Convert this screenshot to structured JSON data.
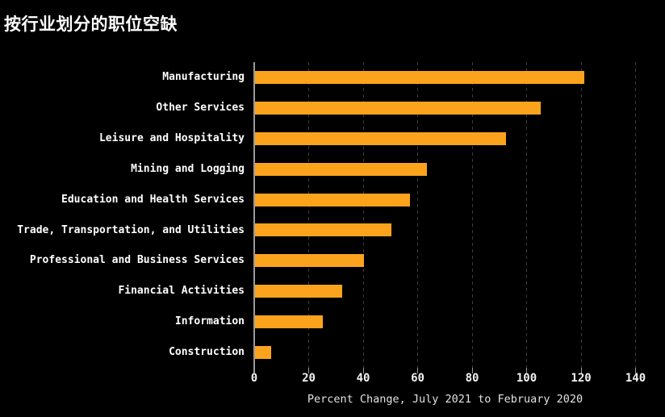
{
  "title": "按行业划分的职位空缺",
  "colors": {
    "background": "#000000",
    "bar": "#FBA31C",
    "title_text": "#ffffff",
    "category_text": "#ffffff",
    "tick_text": "#f2f2f2",
    "axis_label_text": "#e2e2e2",
    "gridline": "#3d3d3d",
    "axis_line": "#9a9a9a"
  },
  "chart_data": {
    "type": "bar",
    "orientation": "horizontal",
    "title": "按行业划分的职位空缺",
    "xlabel": "Percent Change, July 2021 to February 2020",
    "ylabel": "",
    "categories": [
      "Manufacturing",
      "Other Services",
      "Leisure and Hospitality",
      "Mining and Logging",
      "Education and Health Services",
      "Trade, Transportation, and Utilities",
      "Professional and Business Services",
      "Financial Activities",
      "Information",
      "Construction"
    ],
    "values": [
      121,
      105,
      92,
      63,
      57,
      50,
      40,
      32,
      25,
      6
    ],
    "xlim": [
      0,
      150
    ],
    "xticks": [
      0,
      20,
      40,
      60,
      80,
      100,
      120,
      140
    ],
    "grid": "vertical-dashed",
    "legend": "none"
  }
}
